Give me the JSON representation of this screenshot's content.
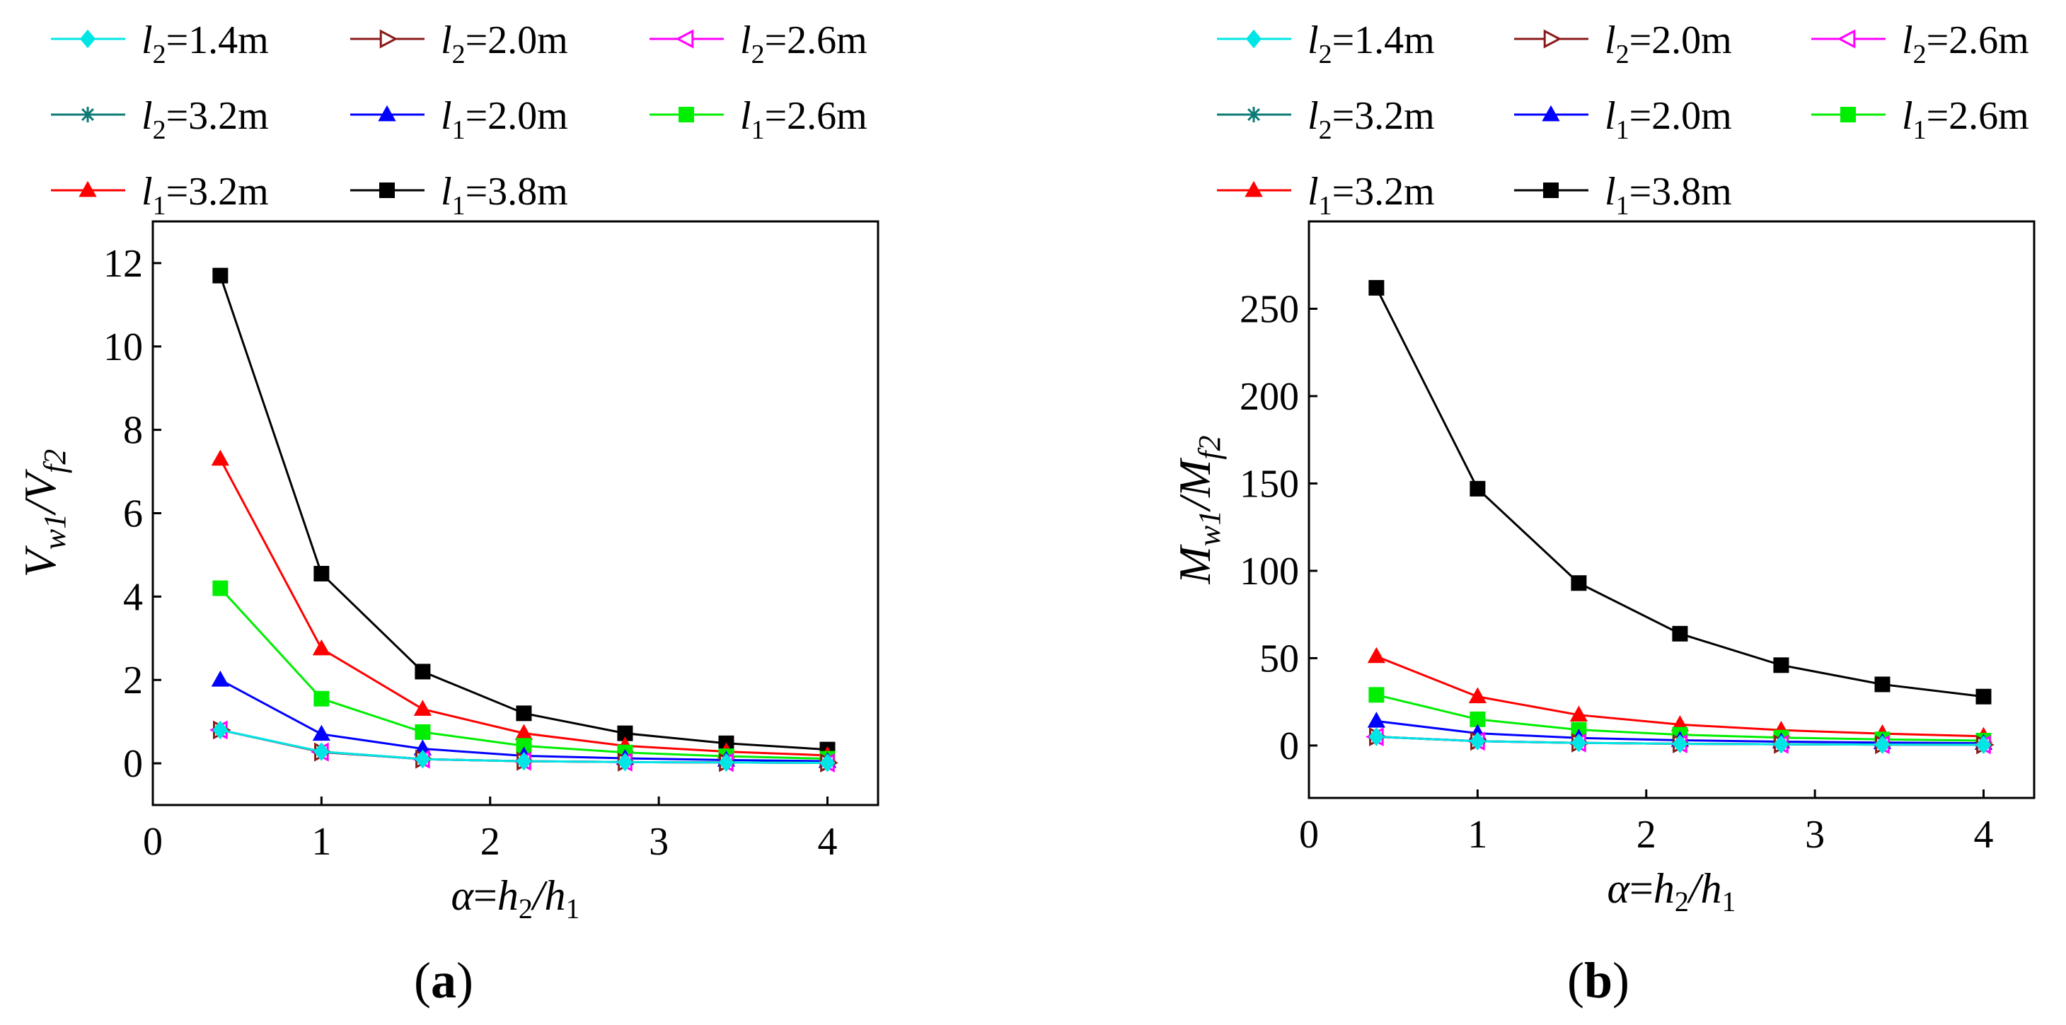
{
  "chart_data": [
    {
      "type": "line",
      "panel_label": "a",
      "xlabel": "α=h2/h1",
      "ylabel": "Vw1/Vf2",
      "xlim": [
        0,
        4.3
      ],
      "ylim": [
        -1,
        13
      ],
      "xticks": [
        "0",
        "1",
        "2",
        "3",
        "4"
      ],
      "xtick_values": [
        0,
        1,
        2,
        3,
        4
      ],
      "yticks": [
        "0",
        "2",
        "4",
        "6",
        "8",
        "10",
        "12"
      ],
      "ytick_values": [
        0,
        2,
        4,
        6,
        8,
        10,
        12
      ],
      "x": [
        0.4,
        1.0,
        1.6,
        2.2,
        2.8,
        3.4,
        4.0
      ],
      "legend_position": "top",
      "series": [
        {
          "key": "l2-1-4",
          "var": "l",
          "sub": "2",
          "eq": "=1.4m",
          "name": "l2=1.4m",
          "marker": "diamond",
          "color": "#00e6e6",
          "values": [
            0.8,
            0.28,
            0.1,
            0.05,
            0.03,
            0.02,
            0.01
          ]
        },
        {
          "key": "l2-2-0",
          "var": "l",
          "sub": "2",
          "eq": "=2.0m",
          "name": "l2=2.0m",
          "marker": "tri-right",
          "color": "#8b1a1a",
          "values": [
            0.8,
            0.27,
            0.1,
            0.05,
            0.03,
            0.02,
            0.01
          ]
        },
        {
          "key": "l2-2-6",
          "var": "l",
          "sub": "2",
          "eq": "=2.6m",
          "name": "l2=2.6m",
          "marker": "tri-left",
          "color": "#ff00ff",
          "values": [
            0.8,
            0.27,
            0.1,
            0.05,
            0.03,
            0.02,
            0.01
          ]
        },
        {
          "key": "l2-3-2",
          "var": "l",
          "sub": "2",
          "eq": "=3.2m",
          "name": "l2=3.2m",
          "marker": "asterisk",
          "color": "#0b7a75",
          "values": [
            0.8,
            0.28,
            0.1,
            0.05,
            0.03,
            0.02,
            0.01
          ]
        },
        {
          "key": "l1-2-0",
          "var": "l",
          "sub": "1",
          "eq": "=2.0m",
          "name": "l1=2.0m",
          "marker": "triangle",
          "color": "#0000ff",
          "values": [
            2.0,
            0.7,
            0.35,
            0.18,
            0.12,
            0.08,
            0.05
          ]
        },
        {
          "key": "l1-2-6",
          "var": "l",
          "sub": "1",
          "eq": "=2.6m",
          "name": "l1=2.6m",
          "marker": "square",
          "color": "#00ee00",
          "values": [
            4.2,
            1.55,
            0.75,
            0.42,
            0.26,
            0.17,
            0.11
          ]
        },
        {
          "key": "l1-3-2",
          "var": "l",
          "sub": "1",
          "eq": "=3.2m",
          "name": "l1=3.2m",
          "marker": "triangle",
          "color": "#ff0000",
          "values": [
            7.3,
            2.75,
            1.3,
            0.72,
            0.42,
            0.28,
            0.19
          ]
        },
        {
          "key": "l1-3-8",
          "var": "l",
          "sub": "1",
          "eq": "=3.8m",
          "name": "l1=3.8m",
          "marker": "square",
          "color": "#000000",
          "values": [
            11.7,
            4.55,
            2.2,
            1.2,
            0.72,
            0.48,
            0.33
          ]
        }
      ]
    },
    {
      "type": "line",
      "panel_label": "b",
      "xlabel": "α=h2/h1",
      "ylabel": "Mw1/Mf2",
      "xlim": [
        0,
        4.3
      ],
      "ylim": [
        -30,
        300
      ],
      "xticks": [
        "0",
        "1",
        "2",
        "3",
        "4"
      ],
      "xtick_values": [
        0,
        1,
        2,
        3,
        4
      ],
      "yticks": [
        "0",
        "50",
        "100",
        "150",
        "200",
        "250"
      ],
      "ytick_values": [
        0,
        50,
        100,
        150,
        200,
        250
      ],
      "x": [
        0.4,
        1.0,
        1.6,
        2.2,
        2.8,
        3.4,
        4.0
      ],
      "legend_position": "top",
      "series": [
        {
          "key": "l2-1-4",
          "var": "l",
          "sub": "2",
          "eq": "=1.4m",
          "name": "l2=1.4m",
          "marker": "diamond",
          "color": "#00e6e6",
          "values": [
            5,
            2.5,
            1.5,
            1.0,
            0.7,
            0.5,
            0.4
          ]
        },
        {
          "key": "l2-2-0",
          "var": "l",
          "sub": "2",
          "eq": "=2.0m",
          "name": "l2=2.0m",
          "marker": "tri-right",
          "color": "#8b1a1a",
          "values": [
            5,
            2.5,
            1.5,
            1.0,
            0.7,
            0.5,
            0.4
          ]
        },
        {
          "key": "l2-2-6",
          "var": "l",
          "sub": "2",
          "eq": "=2.6m",
          "name": "l2=2.6m",
          "marker": "tri-left",
          "color": "#ff00ff",
          "values": [
            5,
            2.5,
            1.5,
            1.0,
            0.7,
            0.5,
            0.4
          ]
        },
        {
          "key": "l2-3-2",
          "var": "l",
          "sub": "2",
          "eq": "=3.2m",
          "name": "l2=3.2m",
          "marker": "asterisk",
          "color": "#0b7a75",
          "values": [
            5,
            2.5,
            1.5,
            1.0,
            0.7,
            0.5,
            0.4
          ]
        },
        {
          "key": "l1-2-0",
          "var": "l",
          "sub": "1",
          "eq": "=2.0m",
          "name": "l1=2.0m",
          "marker": "triangle",
          "color": "#0000ff",
          "values": [
            14,
            7,
            4.3,
            3,
            2.2,
            1.7,
            1.3
          ]
        },
        {
          "key": "l1-2-6",
          "var": "l",
          "sub": "1",
          "eq": "=2.6m",
          "name": "l1=2.6m",
          "marker": "square",
          "color": "#00ee00",
          "values": [
            29,
            15,
            9,
            6.2,
            4.5,
            3.5,
            2.8
          ]
        },
        {
          "key": "l1-3-2",
          "var": "l",
          "sub": "1",
          "eq": "=3.2m",
          "name": "l1=3.2m",
          "marker": "triangle",
          "color": "#ff0000",
          "values": [
            51,
            28,
            17.5,
            12,
            8.8,
            6.8,
            5.3
          ]
        },
        {
          "key": "l1-3-8",
          "var": "l",
          "sub": "1",
          "eq": "=3.8m",
          "name": "l1=3.8m",
          "marker": "square",
          "color": "#000000",
          "values": [
            262,
            147,
            93,
            64,
            46,
            35,
            28
          ]
        }
      ]
    }
  ],
  "captions": {
    "a": {
      "open": "(",
      "label": "a",
      "close": ")"
    },
    "b": {
      "open": "(",
      "label": "b",
      "close": ")"
    }
  }
}
